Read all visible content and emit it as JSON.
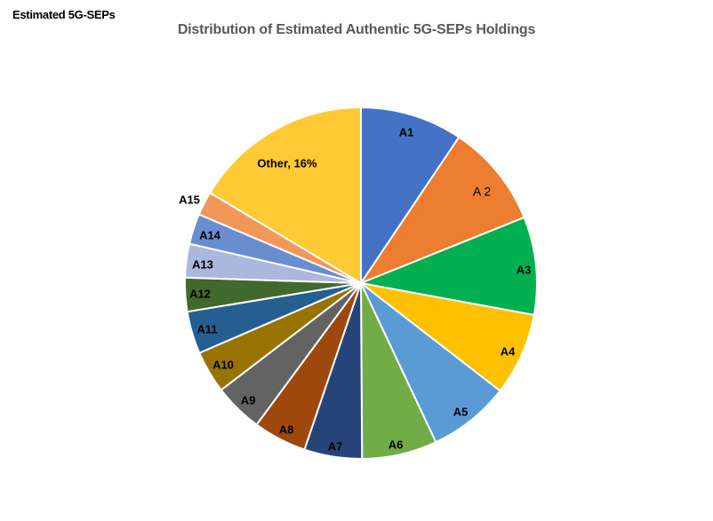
{
  "header": {
    "corner_label": "Estimated 5G-SEPs",
    "title": "Distribution of Estimated Authentic 5G-SEPs Holdings"
  },
  "chart_data": {
    "type": "pie",
    "title": "Distribution of Estimated Authentic 5G-SEPs Holdings",
    "subtitle": "Estimated 5G-SEPs",
    "start_angle": 0,
    "direction": "clockwise",
    "legend": "none",
    "categories": [
      "A1",
      "A 2",
      "A3",
      "A4",
      "A5",
      "A6",
      "A7",
      "A8",
      "A9",
      "A10",
      "A11",
      "A12",
      "A13",
      "A14",
      "A15",
      "Other"
    ],
    "values": [
      9.4,
      9.5,
      9.0,
      7.6,
      7.5,
      6.9,
      5.3,
      4.9,
      4.5,
      3.9,
      3.9,
      3.1,
      3.1,
      2.8,
      2.2,
      16.4
    ],
    "data_labels": [
      "A1",
      "A 2",
      "A3",
      "A4",
      "A5",
      "A6",
      "A7",
      "A8",
      "A9",
      "A10",
      "A11",
      "A12",
      "A13",
      "A14",
      "A15",
      "Other, 16%"
    ],
    "colors": [
      "#4472C4",
      "#ED7D31",
      "#00B050",
      "#FFC000",
      "#5B9BD5",
      "#70AD47",
      "#264478",
      "#9E480E",
      "#636363",
      "#997300",
      "#255E91",
      "#43682B",
      "#A9B8DC",
      "#698ED0",
      "#F1975A",
      "#FFCA33"
    ],
    "annotations": [
      "Other, 16%"
    ]
  }
}
